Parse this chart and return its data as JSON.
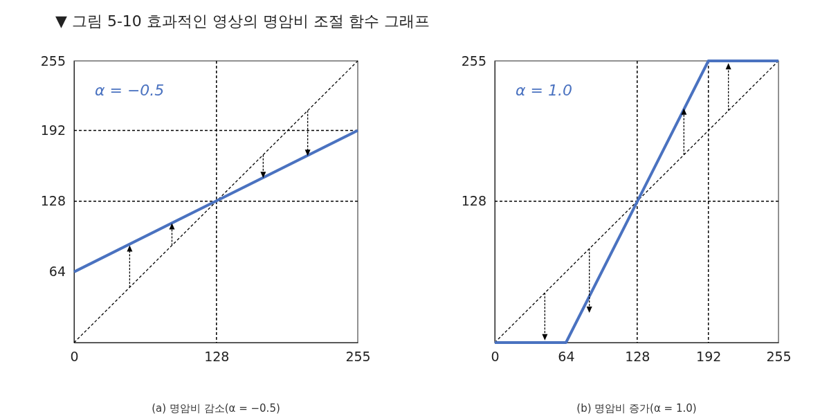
{
  "chart_data": [
    {
      "type": "line",
      "title": "▼ 그림 5-10 효과적인 영상의 명암비 조절 함수 그래프",
      "xlabel": "(a) 명암비 감소(α = −0.5)",
      "annotations": [
        "α = −0.5"
      ],
      "xlim": [
        0,
        255
      ],
      "ylim": [
        0,
        255
      ],
      "xticks": [
        0,
        128,
        255
      ],
      "yticks": [
        64,
        128,
        192,
        255
      ],
      "grid": false,
      "series": [
        {
          "color": "#000000",
          "line_style": "dashed",
          "x": [
            0,
            255
          ],
          "values": [
            0,
            255
          ]
        },
        {
          "color": "#4a72c0",
          "x": [
            0,
            255
          ],
          "values": [
            64,
            192
          ]
        }
      ],
      "ref_lines": [
        {
          "axis": "y",
          "value": 192,
          "color": "#000000",
          "line_style": "dashed"
        },
        {
          "axis": "y",
          "value": 128,
          "color": "#000000",
          "line_style": "dashed"
        },
        {
          "axis": "x",
          "value": 128,
          "color": "#000000",
          "line_style": "dashed"
        }
      ]
    },
    {
      "type": "line",
      "xlabel": "(b) 명암비 증가(α = 1.0)",
      "annotations": [
        "α = 1.0"
      ],
      "xlim": [
        0,
        255
      ],
      "ylim": [
        0,
        255
      ],
      "xticks": [
        0,
        64,
        128,
        192,
        255
      ],
      "yticks": [
        128,
        255
      ],
      "grid": false,
      "series": [
        {
          "color": "#000000",
          "line_style": "dashed",
          "x": [
            0,
            255
          ],
          "values": [
            0,
            255
          ]
        },
        {
          "color": "#4a72c0",
          "x": [
            0,
            64,
            192,
            255
          ],
          "values": [
            0,
            0,
            255,
            255
          ]
        }
      ],
      "ref_lines": [
        {
          "axis": "y",
          "value": 128,
          "color": "#000000",
          "line_style": "dashed"
        },
        {
          "axis": "x",
          "value": 128,
          "color": "#000000",
          "line_style": "dashed"
        },
        {
          "axis": "x",
          "value": 192,
          "color": "#000000",
          "line_style": "dashed"
        }
      ]
    }
  ]
}
